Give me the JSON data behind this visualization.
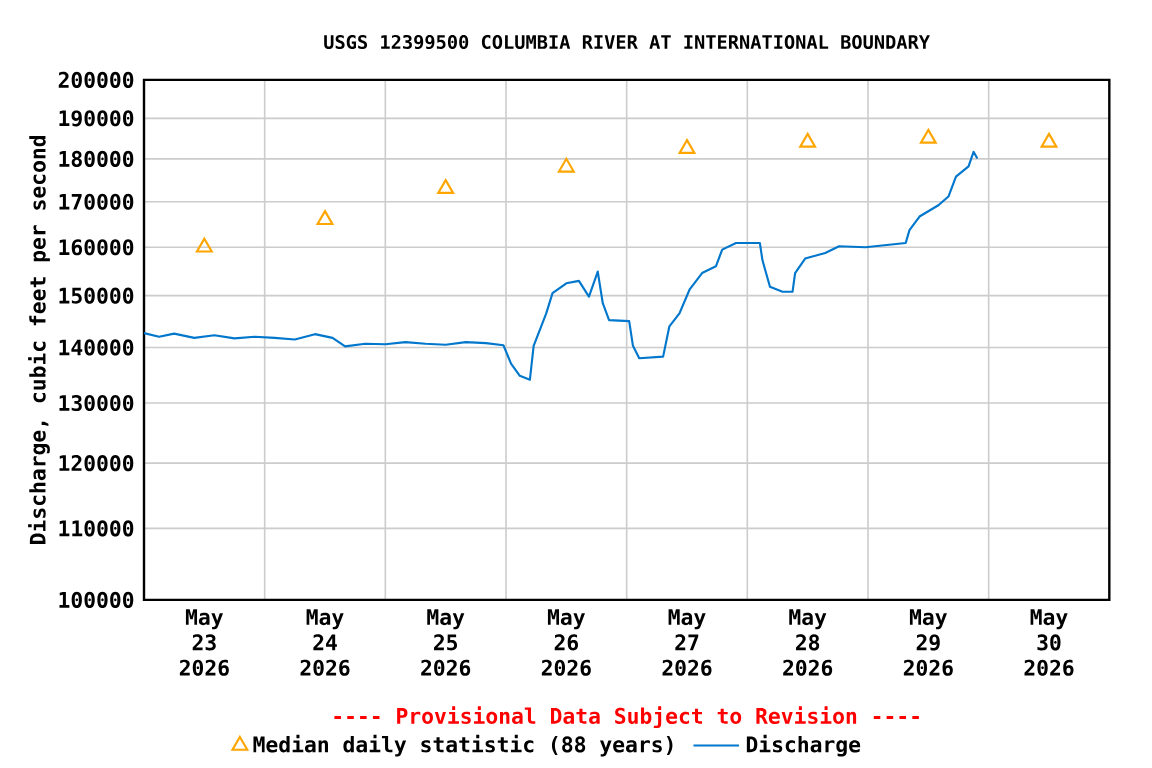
{
  "chart_data": {
    "type": "line",
    "title": "USGS 12399500 COLUMBIA RIVER AT INTERNATIONAL BOUNDARY",
    "ylabel": "Discharge, cubic feet per second",
    "annotations": [
      "---- Provisional Data Subject to Revision ----"
    ],
    "log": "y",
    "grid": true,
    "legend": "bottom",
    "xlim": [
      "2026-05-23T00:00",
      "2026-05-31T00:00"
    ],
    "xticks": [
      {
        "value": "2026-05-23T12:00",
        "label": "May 23 2026"
      },
      {
        "value": "2026-05-24T12:00",
        "label": "May 24 2026"
      },
      {
        "value": "2026-05-25T12:00",
        "label": "May 25 2026"
      },
      {
        "value": "2026-05-26T12:00",
        "label": "May 26 2026"
      },
      {
        "value": "2026-05-27T12:00",
        "label": "May 27 2026"
      },
      {
        "value": "2026-05-28T12:00",
        "label": "May 28 2026"
      },
      {
        "value": "2026-05-29T12:00",
        "label": "May 29 2026"
      },
      {
        "value": "2026-05-30T12:00",
        "label": "May 30 2026"
      },
      {
        "value": "2026-05-24T00:00",
        "label": null
      },
      {
        "value": "2026-05-25T00:00",
        "label": null
      },
      {
        "value": "2026-05-26T00:00",
        "label": null
      },
      {
        "value": "2026-05-27T00:00",
        "label": null
      },
      {
        "value": "2026-05-28T00:00",
        "label": null
      },
      {
        "value": "2026-05-29T00:00",
        "label": null
      },
      {
        "value": "2026-05-30T00:00",
        "label": null
      }
    ],
    "ylim": [
      100000,
      200000
    ],
    "yticks": [
      100000,
      110000,
      120000,
      130000,
      140000,
      150000,
      160000,
      170000,
      180000,
      190000,
      200000
    ],
    "series": [
      {
        "name": "Median daily statistic (88 years)",
        "type": "scatter",
        "marker": "triangle",
        "color": "#ffa500",
        "x": [
          "2026-05-23T12:00",
          "2026-05-24T12:00",
          "2026-05-25T12:00",
          "2026-05-26T12:00",
          "2026-05-27T12:00",
          "2026-05-28T12:00",
          "2026-05-29T12:00",
          "2026-05-30T12:00"
        ],
        "values": [
          160000,
          166000,
          173000,
          178000,
          182500,
          184000,
          185000,
          184000
        ]
      },
      {
        "name": "Discharge",
        "type": "line",
        "marker": "none",
        "line_style": "solid",
        "color": "#0077cc",
        "x": [
          "2026-05-23T00:00",
          "2026-05-23T03:00",
          "2026-05-23T06:00",
          "2026-05-23T10:00",
          "2026-05-23T14:00",
          "2026-05-23T18:00",
          "2026-05-23T22:00",
          "2026-05-24T02:00",
          "2026-05-24T06:00",
          "2026-05-24T10:00",
          "2026-05-24T13:30",
          "2026-05-24T16:00",
          "2026-05-24T20:00",
          "2026-05-25T00:00",
          "2026-05-25T04:00",
          "2026-05-25T08:00",
          "2026-05-25T12:00",
          "2026-05-25T16:00",
          "2026-05-25T20:00",
          "2026-05-25T23:30",
          "2026-05-26T01:00",
          "2026-05-26T02:45",
          "2026-05-26T04:45",
          "2026-05-26T05:30",
          "2026-05-26T08:00",
          "2026-05-26T09:15",
          "2026-05-26T12:00",
          "2026-05-26T14:30",
          "2026-05-26T16:30",
          "2026-05-26T18:15",
          "2026-05-26T19:15",
          "2026-05-26T20:30",
          "2026-05-27T00:30",
          "2026-05-27T01:15",
          "2026-05-27T02:30",
          "2026-05-27T07:15",
          "2026-05-27T08:30",
          "2026-05-27T10:30",
          "2026-05-27T12:30",
          "2026-05-27T15:00",
          "2026-05-27T17:45",
          "2026-05-27T19:00",
          "2026-05-27T21:45",
          "2026-05-28T02:30",
          "2026-05-28T03:00",
          "2026-05-28T04:30",
          "2026-05-28T07:00",
          "2026-05-28T09:00",
          "2026-05-28T09:30",
          "2026-05-28T11:30",
          "2026-05-28T15:30",
          "2026-05-28T18:15",
          "2026-05-28T23:30",
          "2026-05-29T07:30",
          "2026-05-29T08:15",
          "2026-05-29T10:15",
          "2026-05-29T14:00",
          "2026-05-29T16:00",
          "2026-05-29T17:30",
          "2026-05-29T20:00",
          "2026-05-29T21:00",
          "2026-05-29T21:45"
        ],
        "values": [
          142700,
          142000,
          142600,
          141800,
          142300,
          141700,
          142000,
          141800,
          141500,
          142500,
          141800,
          140200,
          140700,
          140600,
          141000,
          140700,
          140500,
          141000,
          140800,
          140400,
          137000,
          134800,
          134100,
          140300,
          146500,
          150500,
          152500,
          153000,
          149800,
          154900,
          148500,
          145200,
          145000,
          140300,
          138000,
          138300,
          144000,
          146500,
          151200,
          154600,
          156000,
          159500,
          160900,
          160900,
          157300,
          151800,
          150800,
          150800,
          154600,
          157600,
          158800,
          160200,
          160000,
          160900,
          163700,
          166700,
          169200,
          171200,
          175800,
          178200,
          181700,
          180100
        ]
      }
    ]
  }
}
